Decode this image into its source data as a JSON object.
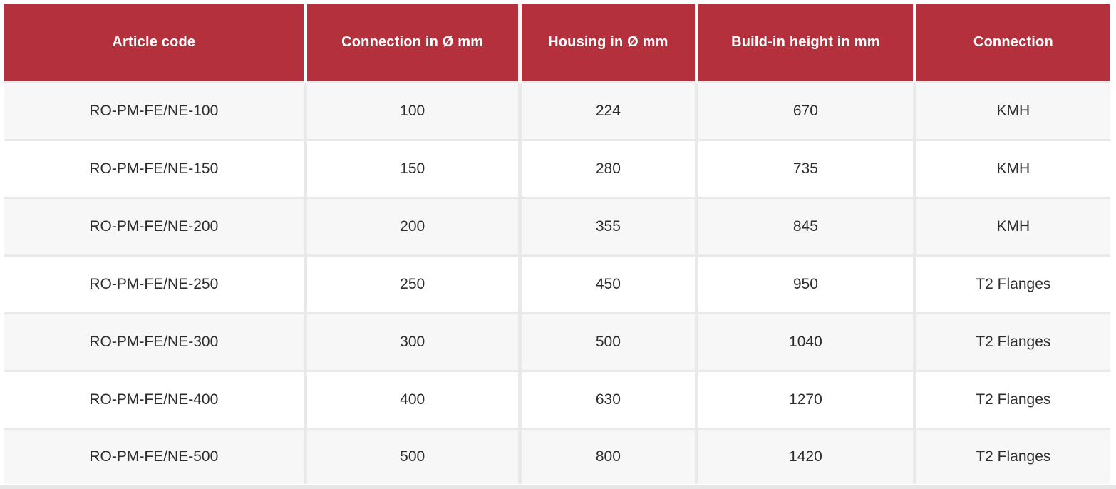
{
  "chart_data": {
    "type": "table",
    "columns": [
      "Article code",
      "Connection in Ø mm",
      "Housing in Ø mm",
      "Build-in height in mm",
      "Connection"
    ],
    "rows": [
      [
        "RO-PM-FE/NE-100",
        "100",
        "224",
        "670",
        "KMH"
      ],
      [
        "RO-PM-FE/NE-150",
        "150",
        "280",
        "735",
        "KMH"
      ],
      [
        "RO-PM-FE/NE-200",
        "200",
        "355",
        "845",
        "KMH"
      ],
      [
        "RO-PM-FE/NE-250",
        "250",
        "450",
        "950",
        "T2 Flanges"
      ],
      [
        "RO-PM-FE/NE-300",
        "300",
        "500",
        "1040",
        "T2 Flanges"
      ],
      [
        "RO-PM-FE/NE-400",
        "400",
        "630",
        "1270",
        "T2 Flanges"
      ],
      [
        "RO-PM-FE/NE-500",
        "500",
        "800",
        "1420",
        "T2 Flanges"
      ]
    ]
  },
  "colors": {
    "header_bg": "#b4303c",
    "header_text": "#ffffff",
    "row_odd_bg": "#f7f7f7",
    "row_even_bg": "#ffffff",
    "body_text": "#2d2d2d",
    "grid_line": "#e9e9e9"
  }
}
